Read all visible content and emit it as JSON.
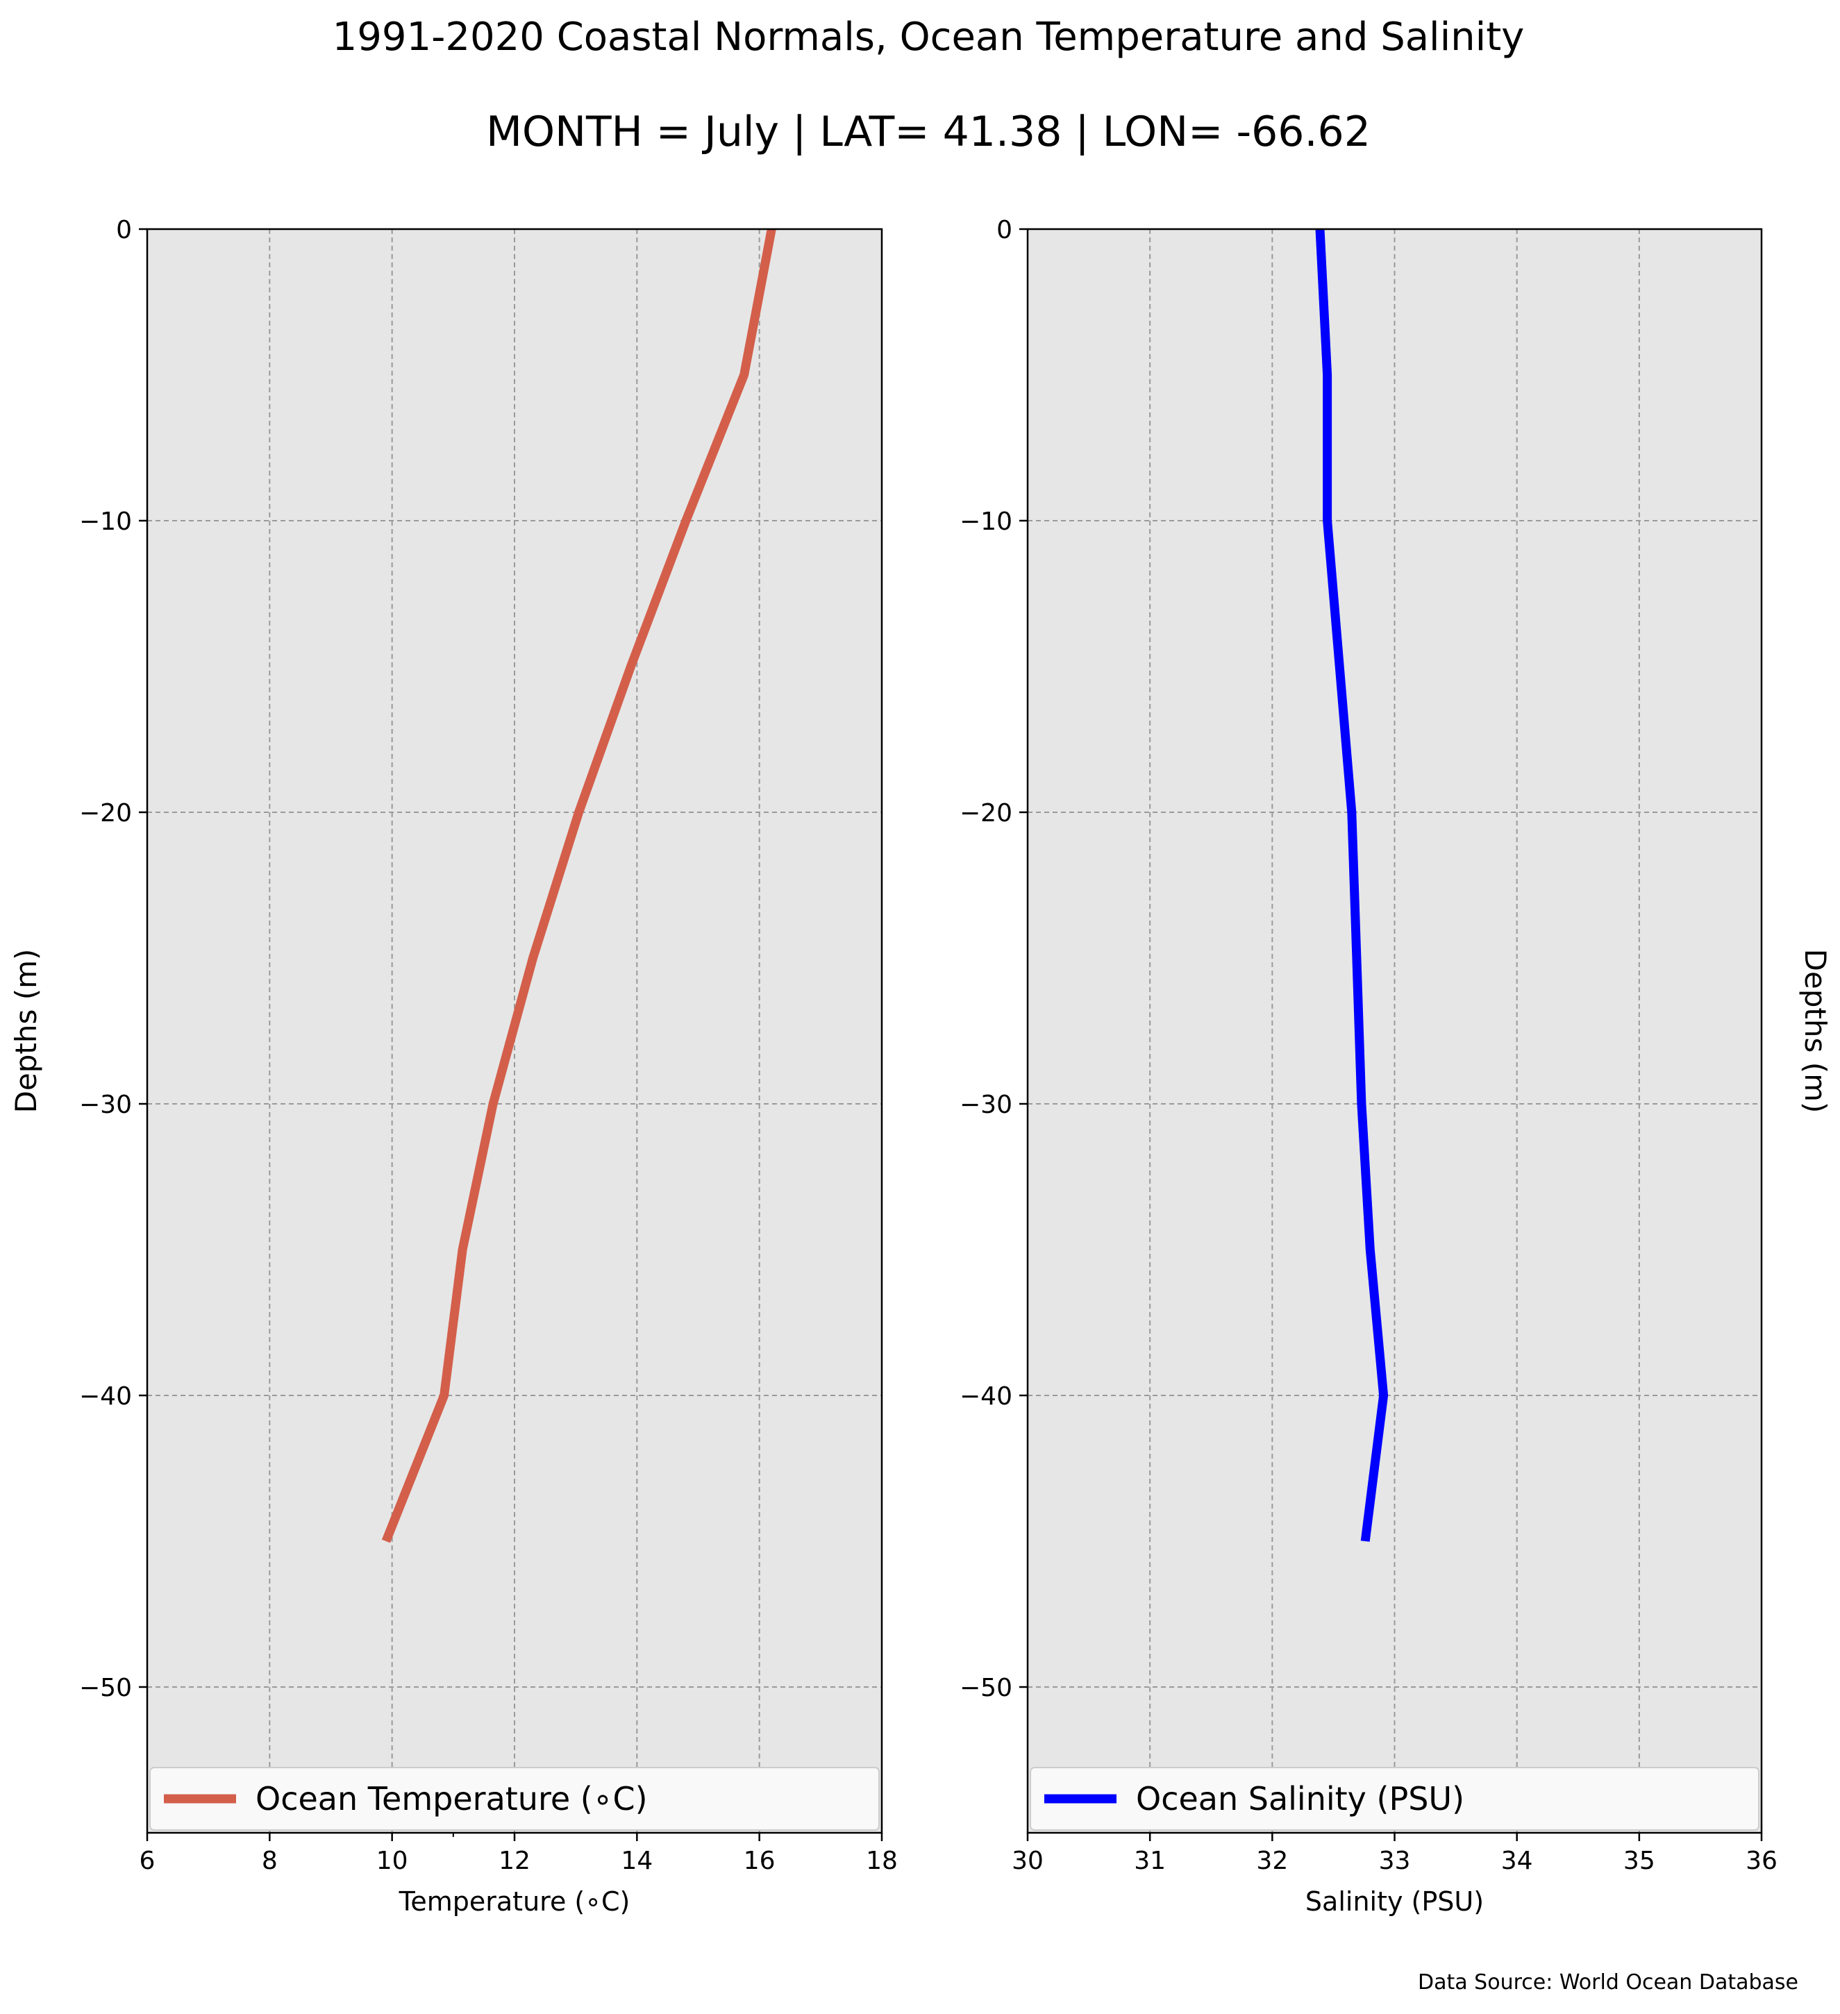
{
  "figure": {
    "title": "1991-2020 Coastal Normals, Ocean Temperature and Salinity",
    "subtitle": "MONTH = July | LAT= 41.38 | LON= -66.62",
    "source": "Data Source: World Ocean Database"
  },
  "chart_data": [
    {
      "type": "line",
      "xlabel": "Temperature (∘C)",
      "ylabel": "Depths (m)",
      "ylabel_side": "left",
      "xlim": [
        6,
        18
      ],
      "ylim": [
        -55,
        0
      ],
      "x_ticks": [
        6,
        8,
        10,
        12,
        14,
        16,
        18
      ],
      "x_tick_labels": [
        "6",
        "8",
        "10",
        "12",
        "14",
        "16",
        "18"
      ],
      "x_minor_ticks": [
        11
      ],
      "y_ticks": [
        0,
        -10,
        -20,
        -30,
        -40,
        -50
      ],
      "y_tick_labels": [
        "0",
        "−10",
        "−20",
        "−30",
        "−40",
        "−50"
      ],
      "grid": true,
      "legend_location": "lower-center",
      "background": "#e6e6e6",
      "series": [
        {
          "name": "Ocean Temperature (∘C)",
          "color": "#d35f4b",
          "x": [
            16.2,
            15.75,
            14.8,
            13.9,
            13.05,
            12.3,
            11.65,
            11.15,
            10.85,
            9.9
          ],
          "y": [
            0,
            -5,
            -10,
            -15,
            -20,
            -25,
            -30,
            -35,
            -40,
            -45
          ]
        }
      ]
    },
    {
      "type": "line",
      "xlabel": "Salinity (PSU)",
      "ylabel": "Depths (m)",
      "ylabel_side": "right",
      "xlim": [
        30,
        36
      ],
      "ylim": [
        -55,
        0
      ],
      "x_ticks": [
        30,
        31,
        32,
        33,
        34,
        35,
        36
      ],
      "x_tick_labels": [
        "30",
        "31",
        "32",
        "33",
        "34",
        "35",
        "36"
      ],
      "y_ticks": [
        0,
        -10,
        -20,
        -30,
        -40,
        -50
      ],
      "y_tick_labels": [
        "0",
        "−10",
        "−20",
        "−30",
        "−40",
        "−50"
      ],
      "grid": true,
      "legend_location": "lower-center",
      "background": "#e6e6e6",
      "series": [
        {
          "name": "Ocean Salinity (PSU)",
          "color": "#0000ff",
          "x": [
            32.39,
            32.45,
            32.45,
            32.55,
            32.65,
            32.69,
            32.73,
            32.8,
            32.91,
            32.76
          ],
          "y": [
            0,
            -5,
            -10,
            -15,
            -20,
            -25,
            -30,
            -35,
            -40,
            -45
          ]
        }
      ]
    }
  ]
}
